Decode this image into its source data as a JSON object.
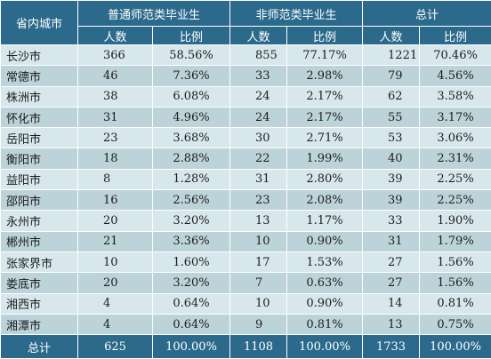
{
  "header": {
    "city_col": "省内城市",
    "groups": [
      "普通师范类毕业生",
      "非师范类毕业生",
      "总计"
    ],
    "sub": [
      "人数",
      "比例"
    ]
  },
  "rows": [
    {
      "city": "长沙市",
      "n1": "366",
      "p1": "58.56%",
      "n2": "855",
      "p2": "77.17%",
      "n3": "1221",
      "p3": "70.46%"
    },
    {
      "city": "常德市",
      "n1": "46",
      "p1": "7.36%",
      "n2": "33",
      "p2": "2.98%",
      "n3": "79",
      "p3": "4.56%"
    },
    {
      "city": "株洲市",
      "n1": "38",
      "p1": "6.08%",
      "n2": "24",
      "p2": "2.17%",
      "n3": "62",
      "p3": "3.58%"
    },
    {
      "city": "怀化市",
      "n1": "31",
      "p1": "4.96%",
      "n2": "24",
      "p2": "2.17%",
      "n3": "55",
      "p3": "3.17%"
    },
    {
      "city": "岳阳市",
      "n1": "23",
      "p1": "3.68%",
      "n2": "30",
      "p2": "2.71%",
      "n3": "53",
      "p3": "3.06%"
    },
    {
      "city": "衡阳市",
      "n1": "18",
      "p1": "2.88%",
      "n2": "22",
      "p2": "1.99%",
      "n3": "40",
      "p3": "2.31%"
    },
    {
      "city": "益阳市",
      "n1": "8",
      "p1": "1.28%",
      "n2": "31",
      "p2": "2.80%",
      "n3": "39",
      "p3": "2.25%"
    },
    {
      "city": "邵阳市",
      "n1": "16",
      "p1": "2.56%",
      "n2": "23",
      "p2": "2.08%",
      "n3": "39",
      "p3": "2.25%"
    },
    {
      "city": "永州市",
      "n1": "20",
      "p1": "3.20%",
      "n2": "13",
      "p2": "1.17%",
      "n3": "33",
      "p3": "1.90%"
    },
    {
      "city": "郴州市",
      "n1": "21",
      "p1": "3.36%",
      "n2": "10",
      "p2": "0.90%",
      "n3": "31",
      "p3": "1.79%"
    },
    {
      "city": "张家界市",
      "n1": "10",
      "p1": "1.60%",
      "n2": "17",
      "p2": "1.53%",
      "n3": "27",
      "p3": "1.56%"
    },
    {
      "city": "娄底市",
      "n1": "20",
      "p1": "3.20%",
      "n2": "7",
      "p2": "0.63%",
      "n3": "27",
      "p3": "1.56%"
    },
    {
      "city": "湘西市",
      "n1": "4",
      "p1": "0.64%",
      "n2": "10",
      "p2": "0.90%",
      "n3": "14",
      "p3": "0.81%"
    },
    {
      "city": "湘潭市",
      "n1": "4",
      "p1": "0.64%",
      "n2": "9",
      "p2": "0.81%",
      "n3": "13",
      "p3": "0.75%"
    }
  ],
  "total": {
    "city": "总计",
    "n1": "625",
    "p1": "100.00%",
    "n2": "1108",
    "p2": "100.00%",
    "n3": "1733",
    "p3": "100.00%"
  }
}
